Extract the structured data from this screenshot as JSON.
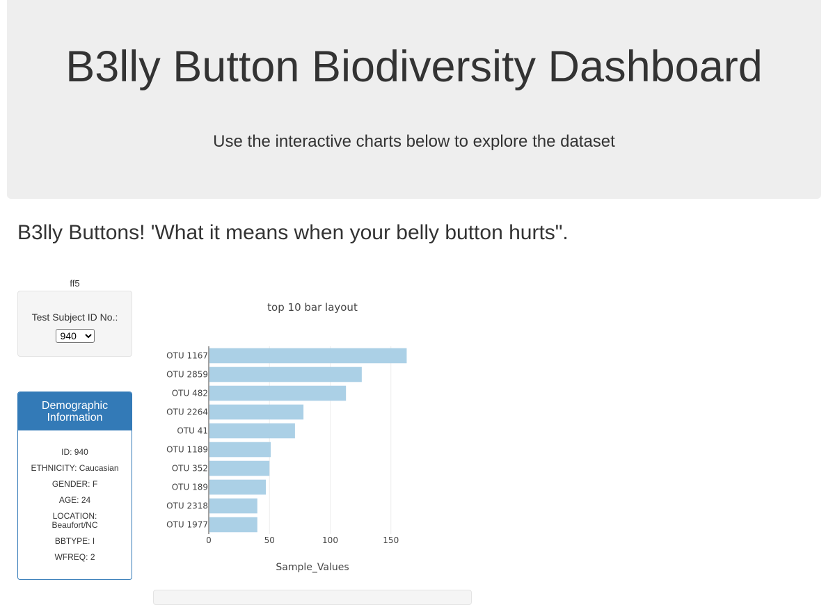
{
  "header": {
    "title": "B3lly Button Biodiversity Dashboard",
    "subtitle": "Use the interactive charts below to explore the dataset"
  },
  "subheading": "B3lly Buttons! 'What it means when your belly button hurts\".",
  "selector": {
    "caption": "ff5",
    "label": "Test Subject ID No.:",
    "selected": "940"
  },
  "demographics": {
    "title": "Demographic Information",
    "rows": [
      "ID: 940",
      "ETHNICITY: Caucasian",
      "GENDER: F",
      "AGE: 24",
      "LOCATION: Beaufort/NC",
      "BBTYPE: I",
      "WFREQ: 2"
    ]
  },
  "colors": {
    "bar": "#abd0e6",
    "panel": "#337ab7",
    "jumbotron": "#eeeeee"
  },
  "chart_data": {
    "type": "bar",
    "orientation": "horizontal",
    "title": "top 10 bar layout",
    "xlabel": "Sample_Values",
    "ylabel": "",
    "categories": [
      "OTU 1167",
      "OTU 2859",
      "OTU 482",
      "OTU 2264",
      "OTU 41",
      "OTU 1189",
      "OTU 352",
      "OTU 189",
      "OTU 2318",
      "OTU 1977"
    ],
    "values": [
      163,
      126,
      113,
      78,
      71,
      51,
      50,
      47,
      40,
      40
    ],
    "xlim": [
      0,
      170
    ],
    "xticks": [
      0,
      50,
      100,
      150
    ],
    "grid": true
  }
}
